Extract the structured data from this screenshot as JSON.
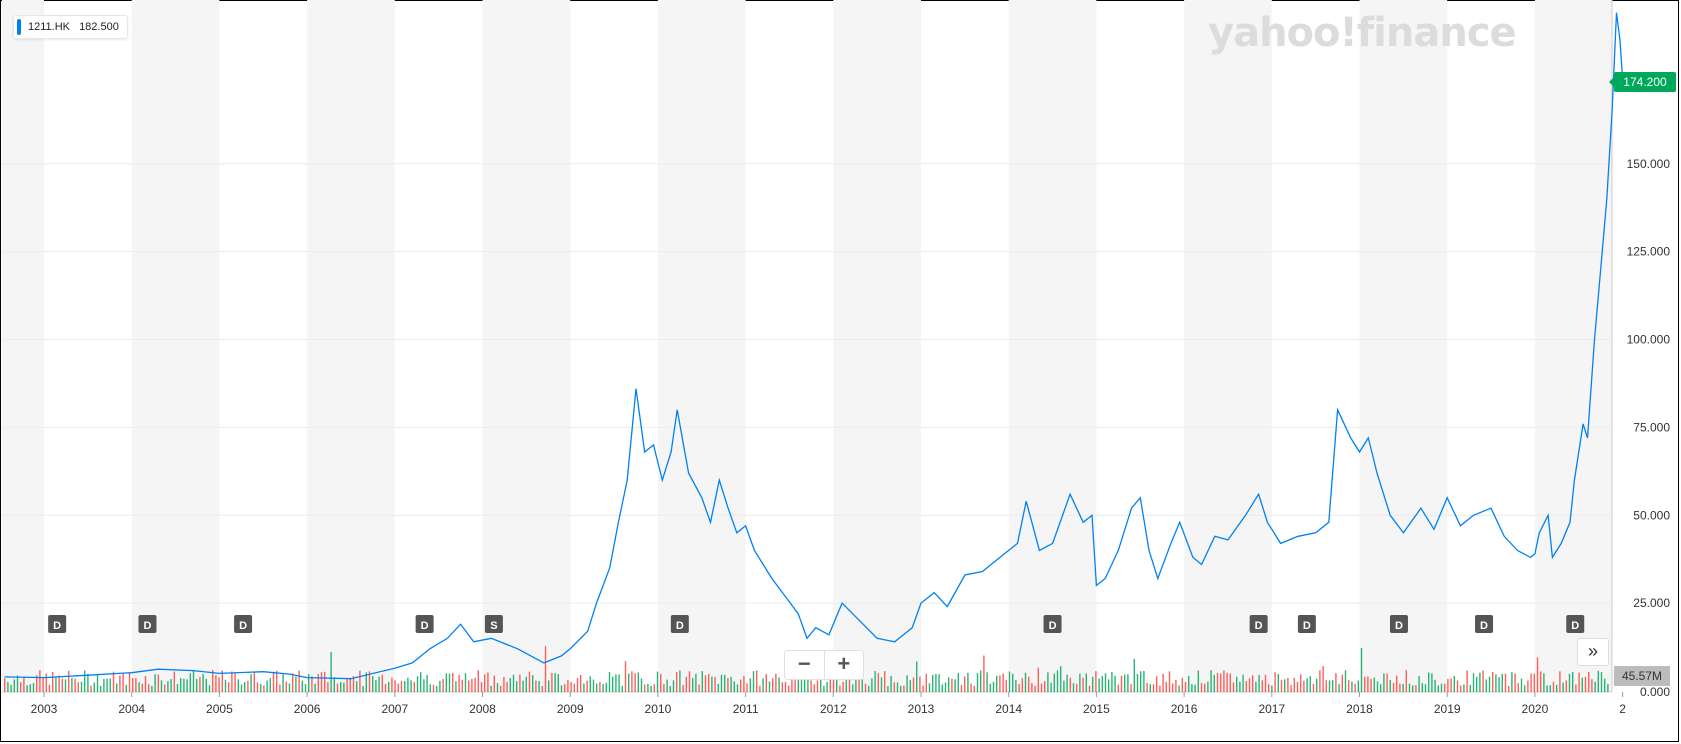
{
  "legend": {
    "symbol": "1211.HK",
    "value": "182.500"
  },
  "brand": "yahoo!finance",
  "current_price": "174.200",
  "current_volume": "45.57M",
  "zoom": {
    "minus": "−",
    "plus": "+"
  },
  "fast_forward": "»",
  "colors": {
    "line": "#0081f2",
    "price_tag": "#00a85c",
    "vol_up": "#00a85c",
    "vol_down": "#ff433d",
    "band": "#f5f5f5"
  },
  "chart_data": {
    "type": "line",
    "title": "",
    "xlabel": "",
    "ylabel": "",
    "ylim": [
      0,
      200
    ],
    "yticks": [
      "25.000",
      "50.000",
      "75.000",
      "100.000",
      "125.000",
      "150.000"
    ],
    "y_zero_label": "0.000",
    "xticks": [
      "2003",
      "2004",
      "2005",
      "2006",
      "2007",
      "2008",
      "2009",
      "2010",
      "2011",
      "2012",
      "2013",
      "2014",
      "2015",
      "2016",
      "2017",
      "2018",
      "2019",
      "2020",
      "2"
    ],
    "grid": true,
    "legend_placement": "top-left",
    "series": [
      {
        "name": "1211.HK",
        "points": [
          [
            2002.55,
            4
          ],
          [
            2003.0,
            3.8
          ],
          [
            2003.5,
            4.5
          ],
          [
            2004.0,
            5.2
          ],
          [
            2004.3,
            6.2
          ],
          [
            2004.7,
            5.8
          ],
          [
            2005.0,
            5.0
          ],
          [
            2005.5,
            5.5
          ],
          [
            2005.8,
            4.8
          ],
          [
            2006.0,
            3.8
          ],
          [
            2006.5,
            3.5
          ],
          [
            2007.0,
            6.5
          ],
          [
            2007.2,
            8
          ],
          [
            2007.4,
            12
          ],
          [
            2007.6,
            15
          ],
          [
            2007.75,
            19
          ],
          [
            2007.9,
            14
          ],
          [
            2008.1,
            15
          ],
          [
            2008.4,
            12
          ],
          [
            2008.7,
            8
          ],
          [
            2008.9,
            10
          ],
          [
            2009.0,
            12
          ],
          [
            2009.2,
            17
          ],
          [
            2009.3,
            25
          ],
          [
            2009.45,
            35
          ],
          [
            2009.55,
            48
          ],
          [
            2009.65,
            60
          ],
          [
            2009.75,
            86
          ],
          [
            2009.85,
            68
          ],
          [
            2009.95,
            70
          ],
          [
            2010.05,
            60
          ],
          [
            2010.15,
            68
          ],
          [
            2010.22,
            80
          ],
          [
            2010.35,
            62
          ],
          [
            2010.5,
            55
          ],
          [
            2010.6,
            48
          ],
          [
            2010.7,
            60
          ],
          [
            2010.8,
            52
          ],
          [
            2010.9,
            45
          ],
          [
            2011.0,
            47
          ],
          [
            2011.1,
            40
          ],
          [
            2011.3,
            32
          ],
          [
            2011.45,
            27
          ],
          [
            2011.6,
            22
          ],
          [
            2011.7,
            15
          ],
          [
            2011.8,
            18
          ],
          [
            2011.95,
            16
          ],
          [
            2012.1,
            25
          ],
          [
            2012.3,
            20
          ],
          [
            2012.5,
            15
          ],
          [
            2012.7,
            14
          ],
          [
            2012.9,
            18
          ],
          [
            2013.0,
            25
          ],
          [
            2013.15,
            28
          ],
          [
            2013.3,
            24
          ],
          [
            2013.5,
            33
          ],
          [
            2013.7,
            34
          ],
          [
            2013.9,
            38
          ],
          [
            2014.1,
            42
          ],
          [
            2014.2,
            54
          ],
          [
            2014.35,
            40
          ],
          [
            2014.5,
            42
          ],
          [
            2014.7,
            56
          ],
          [
            2014.85,
            48
          ],
          [
            2014.95,
            50
          ],
          [
            2015.0,
            30
          ],
          [
            2015.1,
            32
          ],
          [
            2015.25,
            40
          ],
          [
            2015.4,
            52
          ],
          [
            2015.5,
            55
          ],
          [
            2015.6,
            40
          ],
          [
            2015.7,
            32
          ],
          [
            2015.85,
            42
          ],
          [
            2015.95,
            48
          ],
          [
            2016.1,
            38
          ],
          [
            2016.2,
            36
          ],
          [
            2016.35,
            44
          ],
          [
            2016.5,
            43
          ],
          [
            2016.7,
            50
          ],
          [
            2016.85,
            56
          ],
          [
            2016.95,
            48
          ],
          [
            2017.1,
            42
          ],
          [
            2017.3,
            44
          ],
          [
            2017.5,
            45
          ],
          [
            2017.65,
            48
          ],
          [
            2017.75,
            80
          ],
          [
            2017.9,
            72
          ],
          [
            2018.0,
            68
          ],
          [
            2018.1,
            72
          ],
          [
            2018.2,
            62
          ],
          [
            2018.35,
            50
          ],
          [
            2018.5,
            45
          ],
          [
            2018.7,
            52
          ],
          [
            2018.85,
            46
          ],
          [
            2019.0,
            55
          ],
          [
            2019.15,
            47
          ],
          [
            2019.3,
            50
          ],
          [
            2019.5,
            52
          ],
          [
            2019.65,
            44
          ],
          [
            2019.8,
            40
          ],
          [
            2019.95,
            38
          ],
          [
            2020.0,
            39
          ],
          [
            2020.05,
            45
          ],
          [
            2020.15,
            50
          ],
          [
            2020.2,
            38
          ],
          [
            2020.3,
            42
          ],
          [
            2020.4,
            48
          ],
          [
            2020.45,
            60
          ],
          [
            2020.55,
            76
          ],
          [
            2020.6,
            72
          ],
          [
            2020.68,
            100
          ],
          [
            2020.75,
            120
          ],
          [
            2020.82,
            140
          ],
          [
            2020.88,
            165
          ],
          [
            2020.93,
            193
          ],
          [
            2020.97,
            185
          ],
          [
            2021.0,
            174.2
          ]
        ]
      }
    ],
    "event_markers": [
      {
        "x": 2003.15,
        "label": "D"
      },
      {
        "x": 2004.18,
        "label": "D"
      },
      {
        "x": 2005.27,
        "label": "D"
      },
      {
        "x": 2007.34,
        "label": "D"
      },
      {
        "x": 2008.13,
        "label": "S"
      },
      {
        "x": 2010.25,
        "label": "D"
      },
      {
        "x": 2014.5,
        "label": "D"
      },
      {
        "x": 2016.85,
        "label": "D"
      },
      {
        "x": 2017.4,
        "label": "D"
      },
      {
        "x": 2018.45,
        "label": "D"
      },
      {
        "x": 2019.42,
        "label": "D"
      },
      {
        "x": 2020.46,
        "label": "D"
      }
    ]
  }
}
